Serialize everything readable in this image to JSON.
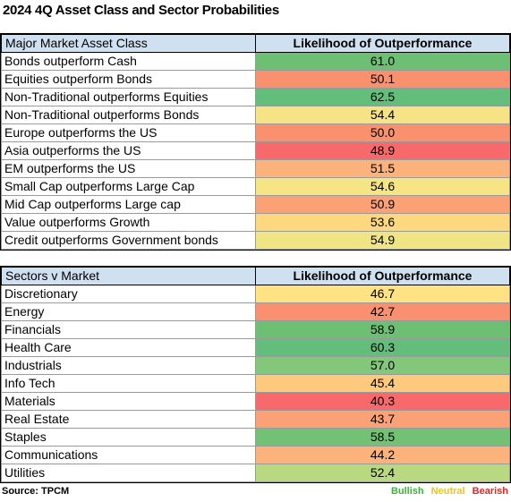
{
  "title": "2024 4Q Asset Class and Sector Probabilities",
  "source": "Source: TPCM",
  "legend": [
    {
      "label": "Bullish",
      "color": "#3cb43c"
    },
    {
      "label": "Neutral",
      "color": "#f0c419"
    },
    {
      "label": "Bearish",
      "color": "#e62424"
    }
  ],
  "chart_data": [
    {
      "type": "table",
      "header_label": "Major Market Asset Class",
      "header_value": "Likelihood of Outperformance",
      "rows": [
        {
          "label": "Bonds outperform Cash",
          "value": "61.0",
          "color": "#6cbf73"
        },
        {
          "label": "Equities outperform Bonds",
          "value": "50.1",
          "color": "#f9906e"
        },
        {
          "label": "Non-Traditional outperforms Equities",
          "value": "62.5",
          "color": "#63be7b"
        },
        {
          "label": "Non-Traditional outperforms Bonds",
          "value": "54.4",
          "color": "#f6e385"
        },
        {
          "label": "Europe outperforms the US",
          "value": "50.0",
          "color": "#f9906e"
        },
        {
          "label": "Asia outperforms the US",
          "value": "48.9",
          "color": "#f8696b"
        },
        {
          "label": "EM outperforms the US",
          "value": "51.5",
          "color": "#fbb37b"
        },
        {
          "label": "Small Cap outperforms Large Cap",
          "value": "54.6",
          "color": "#f5e585"
        },
        {
          "label": "Mid Cap outperforms Large cap",
          "value": "50.9",
          "color": "#faa275"
        },
        {
          "label": "Value outperforms Growth",
          "value": "53.6",
          "color": "#fdd87f"
        },
        {
          "label": "Credit outperforms Government bonds",
          "value": "54.9",
          "color": "#f0e584"
        }
      ]
    },
    {
      "type": "table",
      "header_label": "Sectors v Market",
      "header_value": "Likelihood of Outperformance",
      "rows": [
        {
          "label": "Discretionary",
          "value": "46.7",
          "color": "#fee283"
        },
        {
          "label": "Energy",
          "value": "42.7",
          "color": "#f99070"
        },
        {
          "label": "Financials",
          "value": "58.9",
          "color": "#6cbf73"
        },
        {
          "label": "Health Care",
          "value": "60.3",
          "color": "#63be7b"
        },
        {
          "label": "Industrials",
          "value": "57.0",
          "color": "#83c77a"
        },
        {
          "label": "Info Tech",
          "value": "45.4",
          "color": "#fdc97d"
        },
        {
          "label": "Materials",
          "value": "40.3",
          "color": "#f8696b"
        },
        {
          "label": "Real Estate",
          "value": "43.7",
          "color": "#faa275"
        },
        {
          "label": "Staples",
          "value": "58.5",
          "color": "#72c174"
        },
        {
          "label": "Communications",
          "value": "44.2",
          "color": "#fbb37b"
        },
        {
          "label": "Utilities",
          "value": "52.4",
          "color": "#b8d97f"
        }
      ]
    }
  ]
}
